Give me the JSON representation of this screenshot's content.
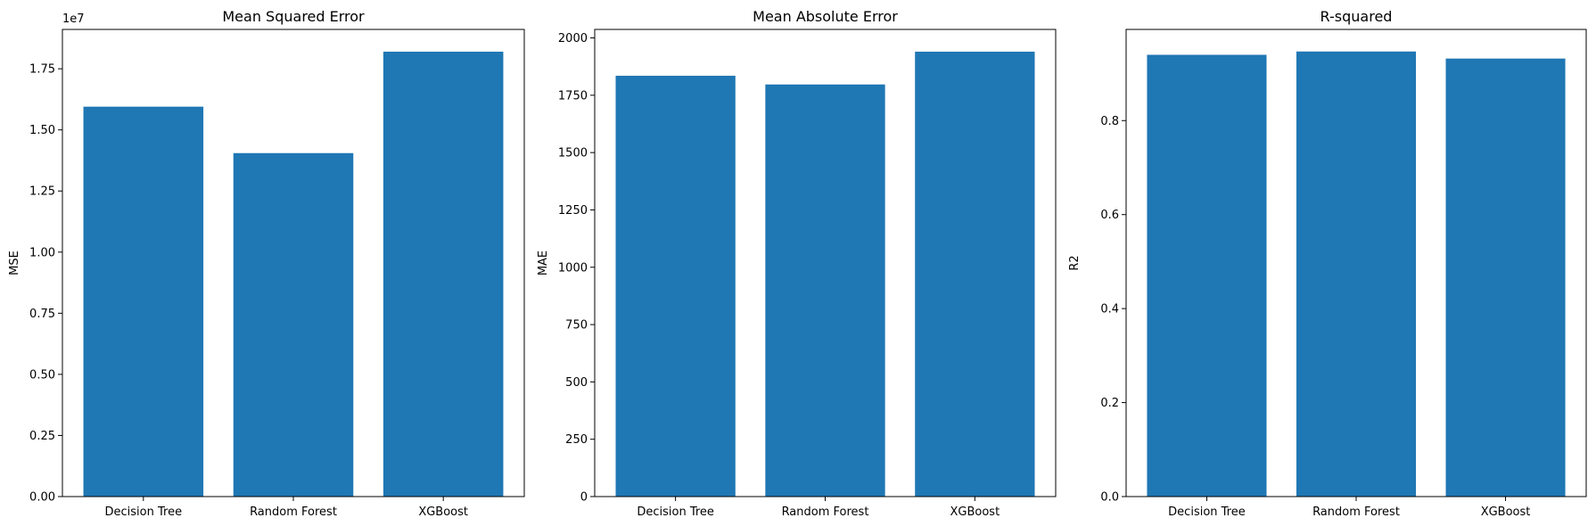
{
  "chart_data": [
    {
      "type": "bar",
      "title": "Mean Squared Error",
      "xlabel": "",
      "ylabel": "MSE",
      "categories": [
        "Decision Tree",
        "Random Forest",
        "XGBoost"
      ],
      "values": [
        15950000,
        14050000,
        18200000
      ],
      "ylim": [
        0,
        19110000
      ],
      "yticks": [
        0,
        2500000,
        5000000,
        7500000,
        10000000,
        12500000,
        15000000,
        17500000
      ],
      "ytick_labels": [
        "0.00",
        "0.25",
        "0.50",
        "0.75",
        "1.00",
        "1.25",
        "1.50",
        "1.75"
      ],
      "offset_label": "1e7",
      "color": "#1f77b4",
      "grid": false
    },
    {
      "type": "bar",
      "title": "Mean Absolute Error",
      "xlabel": "",
      "ylabel": "MAE",
      "categories": [
        "Decision Tree",
        "Random Forest",
        "XGBoost"
      ],
      "values": [
        1835,
        1797,
        1940
      ],
      "ylim": [
        0,
        2037
      ],
      "yticks": [
        0,
        250,
        500,
        750,
        1000,
        1250,
        1500,
        1750,
        2000
      ],
      "ytick_labels": [
        "0",
        "250",
        "500",
        "750",
        "1000",
        "1250",
        "1500",
        "1750",
        "2000"
      ],
      "offset_label": "",
      "color": "#1f77b4",
      "grid": false
    },
    {
      "type": "bar",
      "title": "R-squared",
      "xlabel": "",
      "ylabel": "R2",
      "categories": [
        "Decision Tree",
        "Random Forest",
        "XGBoost"
      ],
      "values": [
        0.94,
        0.947,
        0.932
      ],
      "ylim": [
        0,
        0.994
      ],
      "yticks": [
        0,
        0.2,
        0.4,
        0.6,
        0.8
      ],
      "ytick_labels": [
        "0.0",
        "0.2",
        "0.4",
        "0.6",
        "0.8"
      ],
      "offset_label": "",
      "color": "#1f77b4",
      "grid": false
    }
  ]
}
